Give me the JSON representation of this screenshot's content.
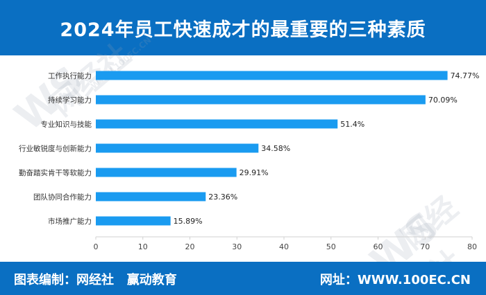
{
  "header": {
    "title": "2024年员工快速成才的最重要的三种素质"
  },
  "footer": {
    "label": "图表编制：",
    "orgs": "网经社   赢动教育",
    "site_label": "网址：",
    "site": "WWW.100EC.CN"
  },
  "watermark": {
    "brand": "网经社",
    "code": "WS",
    "site": "WWW.100EC.CN"
  },
  "colors": {
    "header_bg": "#0a6fc2",
    "bar": "#1a9bf0"
  },
  "chart_data": {
    "type": "bar",
    "orientation": "horizontal",
    "categories": [
      "工作执行能力",
      "持续学习能力",
      "专业知识与技能",
      "行业敏锐度与创新能力",
      "勤奋踏实肯干等软能力",
      "团队协同合作能力",
      "市场推广能力"
    ],
    "values": [
      74.77,
      70.09,
      51.4,
      34.58,
      29.91,
      23.36,
      15.89
    ],
    "value_labels": [
      "74.77%",
      "70.09%",
      "51.4%",
      "34.58%",
      "29.91%",
      "23.36%",
      "15.89%"
    ],
    "xticks": [
      "0",
      "10",
      "20",
      "30",
      "40",
      "50",
      "60",
      "70",
      "80"
    ],
    "xlim": [
      0,
      80
    ],
    "grid": false
  }
}
